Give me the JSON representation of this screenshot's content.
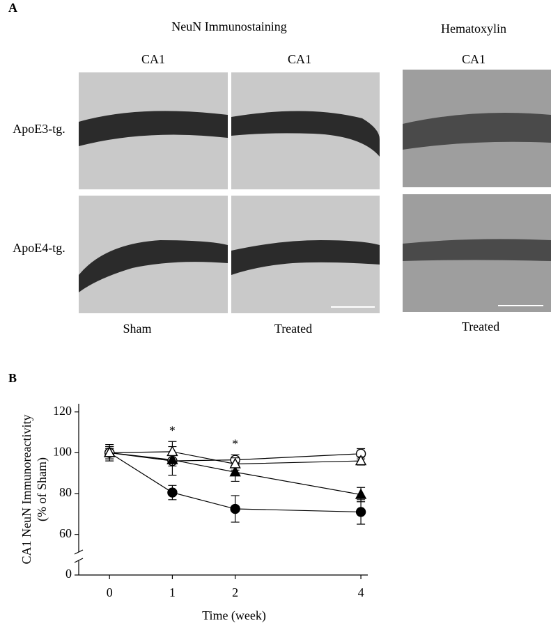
{
  "panel_a": {
    "label": "A",
    "headers": [
      "NeuN Immunostaining",
      "Hematoxylin"
    ],
    "columns": [
      "CA1",
      "CA1",
      "CA1"
    ],
    "rows": [
      "ApoE3-tg.",
      "ApoE4-tg."
    ],
    "footers": [
      "Sham",
      "Treated",
      "Treated"
    ]
  },
  "chart_data": {
    "type": "line",
    "panel_label": "B",
    "y_label": [
      "CA1 NeuN Immunoreactivity",
      "(% of Sham)"
    ],
    "x_label": "Time (week)",
    "x": [
      0,
      1,
      2,
      4
    ],
    "series": [
      {
        "marker": "circle",
        "filled": true,
        "color": "#000000",
        "values": [
          100,
          80.5,
          72.5,
          71
        ],
        "errors": [
          2,
          3.5,
          6.5,
          6
        ]
      },
      {
        "marker": "circle",
        "filled": false,
        "color": "#000000",
        "values": [
          100,
          96,
          96.5,
          99.5
        ],
        "errors": [
          3,
          7,
          2.5,
          2.5
        ]
      },
      {
        "marker": "triangle",
        "filled": true,
        "color": "#000000",
        "values": [
          100,
          96.5,
          90.5,
          79.5
        ],
        "errors": [
          3,
          3,
          4.5,
          3.5
        ]
      },
      {
        "marker": "triangle",
        "filled": false,
        "color": "#000000",
        "values": [
          100,
          100.5,
          94.5,
          96
        ],
        "errors": [
          4,
          5,
          3,
          2
        ]
      }
    ],
    "annotations": [
      {
        "text": "*",
        "x": 1
      },
      {
        "text": "*",
        "x": 2
      }
    ],
    "xlim": [
      -0.49,
      4.11
    ],
    "xticks": [
      0,
      1,
      2,
      4
    ],
    "ylim": [
      50,
      124
    ],
    "yticks": [
      60,
      80,
      100,
      120
    ],
    "axis_break": true,
    "yticks_below_break": [
      0
    ]
  }
}
